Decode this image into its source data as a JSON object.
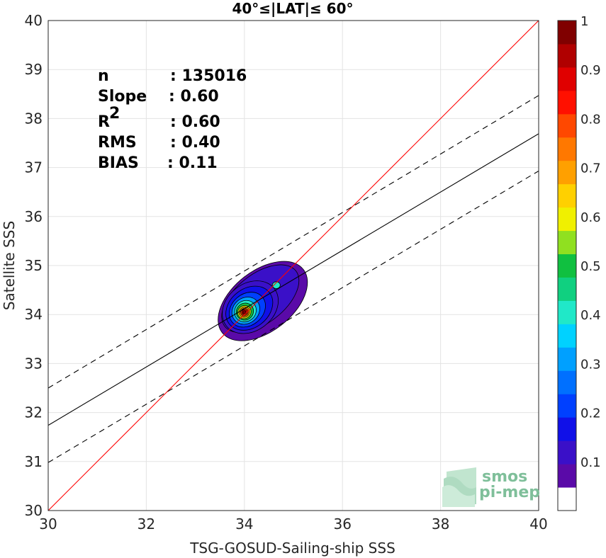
{
  "chart_data": {
    "type": "contour",
    "title": "40°≤|LAT|≤ 60°",
    "xlabel": "TSG-GOSUD-Sailing-ship SSS",
    "ylabel": "Satellite SSS",
    "xlim": [
      30,
      40
    ],
    "ylim": [
      30,
      40
    ],
    "xticks": [
      "30",
      "32",
      "34",
      "36",
      "38",
      "40"
    ],
    "yticks": [
      "30",
      "31",
      "32",
      "33",
      "34",
      "35",
      "36",
      "37",
      "38",
      "39",
      "40"
    ],
    "grid": true,
    "stats": [
      {
        "label": "n",
        "value": ": 135016"
      },
      {
        "label": "Slope",
        "value": ": 0.60"
      },
      {
        "label": "R",
        "sup": "2",
        "value": ": 0.60"
      },
      {
        "label": "RMS",
        "value": ": 0.40"
      },
      {
        "label": "BIAS",
        "value": ": 0.11"
      }
    ],
    "one_to_one_line": {
      "x": [
        30,
        40
      ],
      "y": [
        30,
        40
      ],
      "color": "#ff0000"
    },
    "regression_line": {
      "x": [
        30,
        40
      ],
      "y": [
        31.74,
        37.69
      ],
      "color": "#000000"
    },
    "regression_bands": [
      {
        "x": [
          30,
          40
        ],
        "y": [
          32.5,
          38.47
        ],
        "style": "dashed"
      },
      {
        "x": [
          30,
          40
        ],
        "y": [
          30.98,
          36.93
        ],
        "style": "dashed"
      }
    ],
    "density_peak": {
      "x": 34.0,
      "y": 34.05
    },
    "secondary_peak": {
      "x": 34.65,
      "y": 34.6
    },
    "colorbar": {
      "ticks": [
        "0.1",
        "0.2",
        "0.3",
        "0.4",
        "0.5",
        "0.6",
        "0.7",
        "0.8",
        "0.9",
        "1"
      ],
      "range": [
        0,
        1
      ],
      "colors": [
        "#ffffff",
        "#5a0aa8",
        "#3a10c8",
        "#1010e8",
        "#0040ff",
        "#0070ff",
        "#00a0ff",
        "#00d2ff",
        "#20e8c8",
        "#10d080",
        "#10c040",
        "#90e020",
        "#f0f000",
        "#ffd000",
        "#ffa000",
        "#ff7800",
        "#ff4800",
        "#ff1000",
        "#e00000",
        "#b00000",
        "#800000"
      ]
    }
  },
  "logo": {
    "line1": "smos",
    "line2": "pi-mep"
  }
}
